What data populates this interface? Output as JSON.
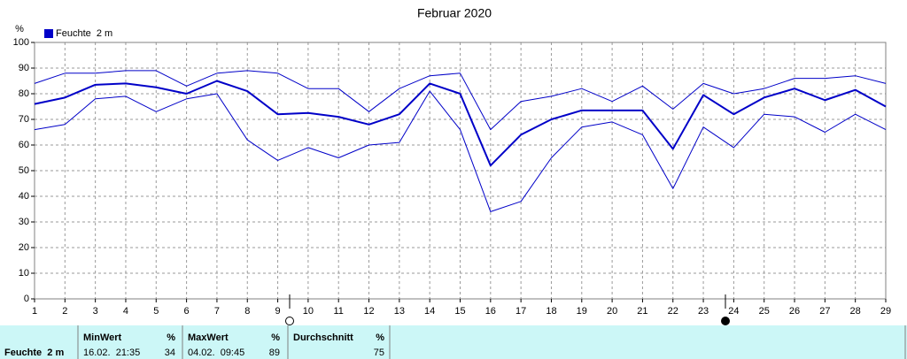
{
  "chart_data": {
    "type": "line",
    "title": "Februar 2020",
    "y_label": "%",
    "x": [
      1,
      2,
      3,
      4,
      5,
      6,
      7,
      8,
      9,
      10,
      11,
      12,
      13,
      14,
      15,
      16,
      17,
      18,
      19,
      20,
      21,
      22,
      23,
      24,
      25,
      26,
      27,
      28,
      29
    ],
    "xlim": [
      1,
      29
    ],
    "xticks": [
      1,
      2,
      3,
      4,
      5,
      6,
      7,
      8,
      9,
      10,
      11,
      12,
      13,
      14,
      15,
      16,
      17,
      18,
      19,
      20,
      21,
      22,
      23,
      24,
      25,
      26,
      27,
      28,
      29
    ],
    "ylim": [
      0,
      100
    ],
    "yticks": [
      0,
      10,
      20,
      30,
      40,
      50,
      60,
      70,
      80,
      90,
      100
    ],
    "grid": true,
    "series": [
      {
        "name": "Feuchte  2 m",
        "color": "#0000c8",
        "values": [
          76,
          78.5,
          83.5,
          84,
          82.5,
          80,
          85,
          81,
          72,
          72.5,
          71,
          68,
          72,
          84,
          80,
          52,
          64,
          70,
          73.5,
          73.5,
          73.5,
          58.5,
          79.5,
          72,
          78.5,
          82,
          77.5,
          81.5,
          75
        ]
      },
      {
        "color": "#0000c8",
        "values": [
          84,
          88,
          88,
          89,
          89,
          83,
          88,
          89,
          88,
          82,
          82,
          73,
          82,
          87,
          88,
          66,
          77,
          79,
          82,
          77,
          83,
          74,
          84,
          80,
          82,
          86,
          86,
          87,
          84
        ]
      },
      {
        "color": "#0000c8",
        "values": [
          66,
          68,
          78,
          79,
          73,
          78,
          80,
          62,
          54,
          59,
          55,
          60,
          61,
          81,
          66,
          34,
          38,
          55,
          67,
          69,
          64,
          43,
          67,
          59,
          72,
          71,
          65,
          72,
          66
        ]
      }
    ]
  },
  "stats_table": {
    "row_label": "Feuchte  2 m",
    "min": {
      "header": "MinWert",
      "unit": "%",
      "time": "16.02.  21:35",
      "value": 34
    },
    "max": {
      "header": "MaxWert",
      "unit": "%",
      "time": "04.02.  09:45",
      "value": 89
    },
    "avg": {
      "header": "Durchschnitt",
      "unit": "%",
      "value": 75
    }
  }
}
